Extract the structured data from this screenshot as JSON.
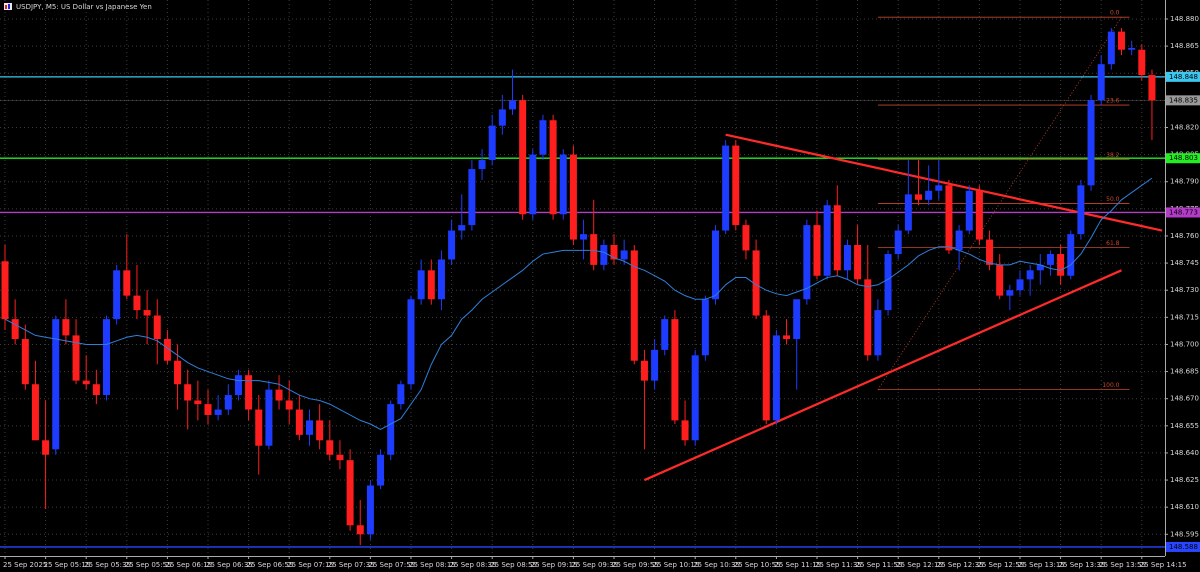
{
  "chart_data": {
    "type": "candlestick",
    "title": "USDJPY, M5: US Dollar vs Japanese Yen",
    "categories": [
      "25 Sep 2025",
      null,
      null,
      null,
      "25 Sep 05:15",
      null,
      null,
      null,
      "25 Sep 05:35",
      null,
      null,
      null,
      "25 Sep 05:55",
      null,
      null,
      null,
      "25 Sep 06:15",
      null,
      null,
      null,
      "25 Sep 06:35",
      null,
      null,
      null,
      "25 Sep 06:55",
      null,
      null,
      null,
      "25 Sep 07:15",
      null,
      null,
      null,
      "25 Sep 07:35",
      null,
      null,
      null,
      "25 Sep 07:55",
      null,
      null,
      null,
      "25 Sep 08:15",
      null,
      null,
      null,
      "25 Sep 08:35",
      null,
      null,
      null,
      "25 Sep 08:55",
      null,
      null,
      null,
      "25 Sep 09:15",
      null,
      null,
      null,
      "25 Sep 09:35",
      null,
      null,
      null,
      "25 Sep 09:55",
      null,
      null,
      null,
      "25 Sep 10:15",
      null,
      null,
      null,
      "25 Sep 10:35",
      null,
      null,
      null,
      "25 Sep 10:55",
      null,
      null,
      null,
      "25 Sep 11:15",
      null,
      null,
      null,
      "25 Sep 11:35",
      null,
      null,
      null,
      "25 Sep 11:55",
      null,
      null,
      null,
      "25 Sep 12:15",
      null,
      null,
      null,
      "25 Sep 12:35",
      null,
      null,
      null,
      "25 Sep 12:55",
      null,
      null,
      null,
      "25 Sep 13:15",
      null,
      null,
      null,
      "25 Sep 13:35",
      null,
      null,
      null,
      "25 Sep 13:55",
      null,
      null,
      null,
      "25 Sep 14:15",
      null
    ],
    "open": [
      148.746,
      148.714,
      148.703,
      148.678,
      148.647,
      148.642,
      148.714,
      148.705,
      148.68,
      148.678,
      148.672,
      148.714,
      148.741,
      148.727,
      148.719,
      148.716,
      148.703,
      148.691,
      148.678,
      148.669,
      148.667,
      148.661,
      148.664,
      148.672,
      148.683,
      148.664,
      148.644,
      148.675,
      148.669,
      148.664,
      148.65,
      148.658,
      148.647,
      148.639,
      148.636,
      148.6,
      148.595,
      148.622,
      148.639,
      148.667,
      148.678,
      148.725,
      148.741,
      148.725,
      148.747,
      148.763,
      148.766,
      148.797,
      148.802,
      148.821,
      148.83,
      148.835,
      148.772,
      148.805,
      148.824,
      148.772,
      148.805,
      148.758,
      148.761,
      148.744,
      148.755,
      148.747,
      148.752,
      148.691,
      148.68,
      148.697,
      148.714,
      148.658,
      148.647,
      148.694,
      148.725,
      148.763,
      148.81,
      148.766,
      148.752,
      148.716,
      148.658,
      148.705,
      148.703,
      148.725,
      148.766,
      148.738,
      148.777,
      148.741,
      148.755,
      148.736,
      148.694,
      148.719,
      148.75,
      148.763,
      148.783,
      148.78,
      148.785,
      148.788,
      148.752,
      148.763,
      148.785,
      148.758,
      148.744,
      148.727,
      148.73,
      148.736,
      148.741,
      148.744,
      148.75,
      148.738,
      148.761,
      148.788,
      148.835,
      148.855,
      148.873,
      148.863,
      148.863,
      148.849
    ],
    "high": [
      148.755,
      148.725,
      148.711,
      148.691,
      148.669,
      148.716,
      148.725,
      148.714,
      148.694,
      148.686,
      148.716,
      148.744,
      148.761,
      148.744,
      148.73,
      148.725,
      148.708,
      148.7,
      148.686,
      148.68,
      148.675,
      148.672,
      148.678,
      148.686,
      148.686,
      148.672,
      148.68,
      148.683,
      148.68,
      148.672,
      148.664,
      148.667,
      148.658,
      148.647,
      148.642,
      148.614,
      148.625,
      148.642,
      148.669,
      148.68,
      148.727,
      148.747,
      148.747,
      148.752,
      148.769,
      148.783,
      148.802,
      148.808,
      148.827,
      148.838,
      148.852,
      148.838,
      148.808,
      148.827,
      148.827,
      148.808,
      148.81,
      148.769,
      148.78,
      148.758,
      148.761,
      148.758,
      148.755,
      148.697,
      148.703,
      148.716,
      148.719,
      148.669,
      148.697,
      148.727,
      148.766,
      148.813,
      148.813,
      148.769,
      148.758,
      148.719,
      148.708,
      148.714,
      148.725,
      148.769,
      148.774,
      148.78,
      148.788,
      148.758,
      148.766,
      148.755,
      148.725,
      148.752,
      148.766,
      148.802,
      148.802,
      148.799,
      148.802,
      148.791,
      148.766,
      148.788,
      148.788,
      148.763,
      148.75,
      148.733,
      148.741,
      148.744,
      148.75,
      148.752,
      148.755,
      148.763,
      148.791,
      148.838,
      148.86,
      148.875,
      148.875,
      148.868,
      148.866,
      148.852
    ],
    "low": [
      148.708,
      148.7,
      148.675,
      148.647,
      148.609,
      148.639,
      148.7,
      148.678,
      148.675,
      148.667,
      148.669,
      148.711,
      148.725,
      148.714,
      148.7,
      148.689,
      148.689,
      148.664,
      148.653,
      148.658,
      148.656,
      148.658,
      148.661,
      148.669,
      148.658,
      148.628,
      148.642,
      148.664,
      148.656,
      148.647,
      148.644,
      148.642,
      148.636,
      148.631,
      148.597,
      148.589,
      148.592,
      148.62,
      148.636,
      148.664,
      148.675,
      148.722,
      148.722,
      148.719,
      148.744,
      148.758,
      148.763,
      148.791,
      148.799,
      148.816,
      148.827,
      148.769,
      148.769,
      148.802,
      148.769,
      148.769,
      148.755,
      148.747,
      148.741,
      148.741,
      148.744,
      148.744,
      148.689,
      148.642,
      148.675,
      148.694,
      148.656,
      148.644,
      148.644,
      148.691,
      148.722,
      148.761,
      148.763,
      148.747,
      148.714,
      148.656,
      148.656,
      148.7,
      148.675,
      148.722,
      148.736,
      148.736,
      148.738,
      148.736,
      148.733,
      148.691,
      148.691,
      148.716,
      148.747,
      148.761,
      148.777,
      148.777,
      148.78,
      148.75,
      148.741,
      148.761,
      148.755,
      148.741,
      148.725,
      148.719,
      148.727,
      148.727,
      148.733,
      148.738,
      148.733,
      148.736,
      148.758,
      148.785,
      148.832,
      148.852,
      148.86,
      148.86,
      148.846,
      148.813
    ],
    "close": [
      148.714,
      148.703,
      148.678,
      148.647,
      148.639,
      148.714,
      148.705,
      148.68,
      148.678,
      148.672,
      148.714,
      148.741,
      148.727,
      148.719,
      148.716,
      148.703,
      148.691,
      148.678,
      148.669,
      148.667,
      148.661,
      148.664,
      148.672,
      148.683,
      148.664,
      148.644,
      148.675,
      148.669,
      148.664,
      148.65,
      148.658,
      148.647,
      148.639,
      148.636,
      148.6,
      148.595,
      148.622,
      148.639,
      148.667,
      148.678,
      148.725,
      148.741,
      148.725,
      148.747,
      148.763,
      148.766,
      148.797,
      148.802,
      148.821,
      148.83,
      148.835,
      148.772,
      148.805,
      148.824,
      148.772,
      148.805,
      148.758,
      148.761,
      148.744,
      148.755,
      148.747,
      148.752,
      148.691,
      148.68,
      148.697,
      148.714,
      148.658,
      148.647,
      148.694,
      148.725,
      148.763,
      148.81,
      148.766,
      148.752,
      148.716,
      148.658,
      148.705,
      148.703,
      148.725,
      148.766,
      148.738,
      148.777,
      148.741,
      148.755,
      148.736,
      148.694,
      148.719,
      148.75,
      148.763,
      148.783,
      148.78,
      148.785,
      148.788,
      148.752,
      148.763,
      148.785,
      148.758,
      148.744,
      148.727,
      148.73,
      148.736,
      148.741,
      148.744,
      148.75,
      148.738,
      148.761,
      148.788,
      148.835,
      148.855,
      148.873,
      148.863,
      148.864,
      148.849,
      148.835
    ],
    "up_color": "#1e3cff",
    "down_color": "#ff1e1e",
    "ma": {
      "color": "#2f7fd8",
      "values": [
        148.714,
        148.711,
        148.708,
        148.705,
        148.704,
        148.703,
        148.702,
        148.701,
        148.7,
        148.7,
        148.7,
        148.702,
        148.704,
        148.705,
        148.704,
        148.702,
        148.698,
        148.694,
        148.69,
        148.687,
        148.685,
        148.683,
        148.681,
        148.68,
        148.68,
        148.68,
        148.679,
        148.678,
        148.675,
        148.672,
        148.67,
        148.669,
        148.667,
        148.664,
        148.661,
        148.658,
        148.656,
        148.653,
        148.656,
        148.659,
        148.667,
        148.675,
        148.689,
        148.7,
        148.705,
        148.714,
        148.719,
        148.725,
        148.729,
        148.733,
        148.737,
        148.741,
        148.746,
        148.75,
        148.751,
        148.752,
        148.752,
        148.752,
        148.752,
        148.751,
        148.748,
        148.746,
        148.743,
        148.741,
        148.738,
        148.735,
        148.73,
        148.727,
        148.725,
        148.725,
        148.727,
        148.733,
        148.737,
        148.737,
        148.733,
        148.73,
        148.728,
        148.727,
        148.729,
        148.731,
        148.734,
        148.737,
        148.738,
        148.736,
        148.733,
        148.732,
        148.733,
        148.736,
        148.74,
        148.744,
        148.749,
        148.752,
        148.754,
        148.754,
        148.752,
        148.75,
        148.747,
        148.745,
        148.744,
        148.744,
        148.746,
        148.745,
        148.744,
        148.742,
        148.741,
        148.744,
        148.75,
        148.759,
        148.769,
        148.774,
        148.78,
        148.784,
        148.788,
        148.792
      ]
    },
    "ylim": [
      148.583,
      148.8905
    ],
    "yticks": [
      {
        "value": 148.88,
        "label": "148.880"
      },
      148.865,
      {
        "value": 148.85,
        "label": "148.850"
      },
      148.835,
      {
        "value": 148.82,
        "label": "148.820"
      },
      148.805,
      {
        "value": 148.79,
        "label": "148.790"
      },
      148.775,
      {
        "value": 148.76,
        "label": "148.760"
      },
      148.745,
      {
        "value": 148.73,
        "label": "148.730"
      },
      148.715,
      {
        "value": 148.7,
        "label": "148.700"
      },
      148.685,
      {
        "value": 148.67,
        "label": "148.670"
      },
      148.655,
      {
        "value": 148.64,
        "label": "148.640"
      },
      148.625,
      {
        "value": 148.61,
        "label": "148.610"
      },
      148.595
    ],
    "grid": true,
    "price_lines": [
      {
        "price": 148.848,
        "color": "#3cc8f0"
      },
      {
        "price": 148.803,
        "color": "#22ee22"
      },
      {
        "price": 148.773,
        "color": "#b43cc8"
      },
      {
        "price": 148.588,
        "color": "#2846ff"
      }
    ],
    "bid": {
      "price": 148.835,
      "color": "#9a9a9a"
    },
    "trendlines": [
      {
        "color": "#ff2a2a",
        "start": {
          "index": 71,
          "price": 148.816
        },
        "end": {
          "index": 114,
          "price": 148.763
        }
      },
      {
        "color": "#ff2a2a",
        "start": {
          "index": 63,
          "price": 148.625
        },
        "end": {
          "index": 110,
          "price": 148.741
        }
      }
    ],
    "fibonacci": {
      "color": "#c8462d",
      "start": {
        "index": 86,
        "price": 148.675
      },
      "end": {
        "index": 110,
        "price": 148.881
      },
      "levels": [
        {
          "value": 0,
          "label": "0.0"
        },
        {
          "value": 23.6,
          "label": "23.6"
        },
        {
          "value": 38.2,
          "label": "38.2"
        },
        {
          "value": 50,
          "label": "50.0"
        },
        {
          "value": 61.8,
          "label": "61.8"
        },
        {
          "value": 100,
          "label": "100.0"
        }
      ]
    }
  }
}
